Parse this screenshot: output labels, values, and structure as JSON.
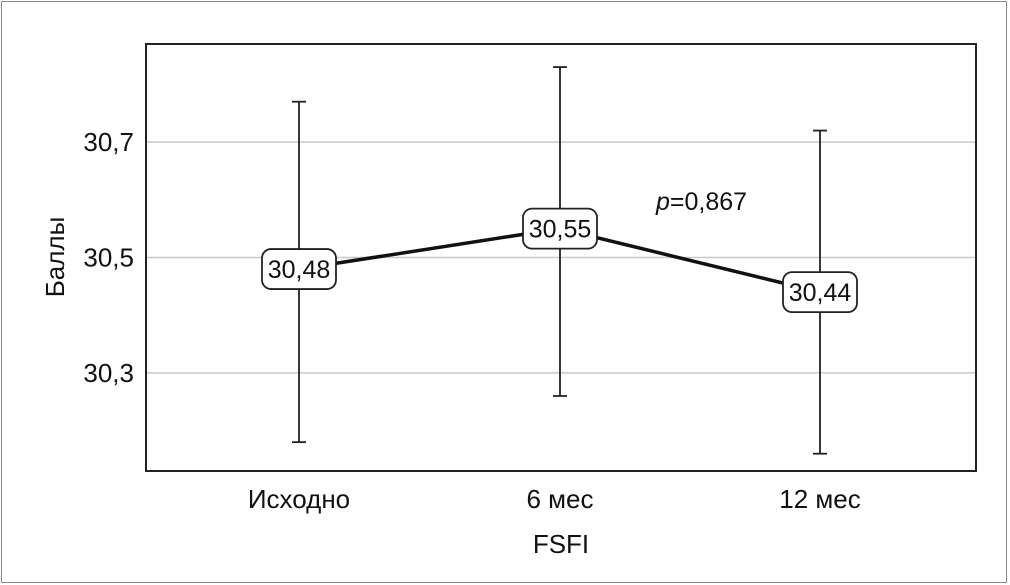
{
  "chart_data": {
    "type": "line",
    "xlabel": "FSFI",
    "ylabel": "Баллы",
    "categories": [
      "Исходно",
      "6 мес",
      "12 мес"
    ],
    "series": [
      {
        "values": [
          30.48,
          30.55,
          30.44
        ],
        "labels": [
          "30,48",
          "30,55",
          "30,44"
        ],
        "error_low": [
          30.18,
          30.26,
          30.16
        ],
        "error_high": [
          30.77,
          30.83,
          30.72
        ]
      }
    ],
    "yticks": [
      30.3,
      30.5,
      30.7
    ],
    "ytick_labels": [
      "30,3",
      "30,5",
      "30,7"
    ],
    "ylim": [
      30.13,
      30.87
    ],
    "grid": true,
    "annotation": {
      "p_symbol": "p",
      "p_value": "=0,867"
    },
    "colors": {
      "line": "#111111",
      "grid": "#c8c8c8",
      "frame": "#8a8a8a"
    }
  }
}
